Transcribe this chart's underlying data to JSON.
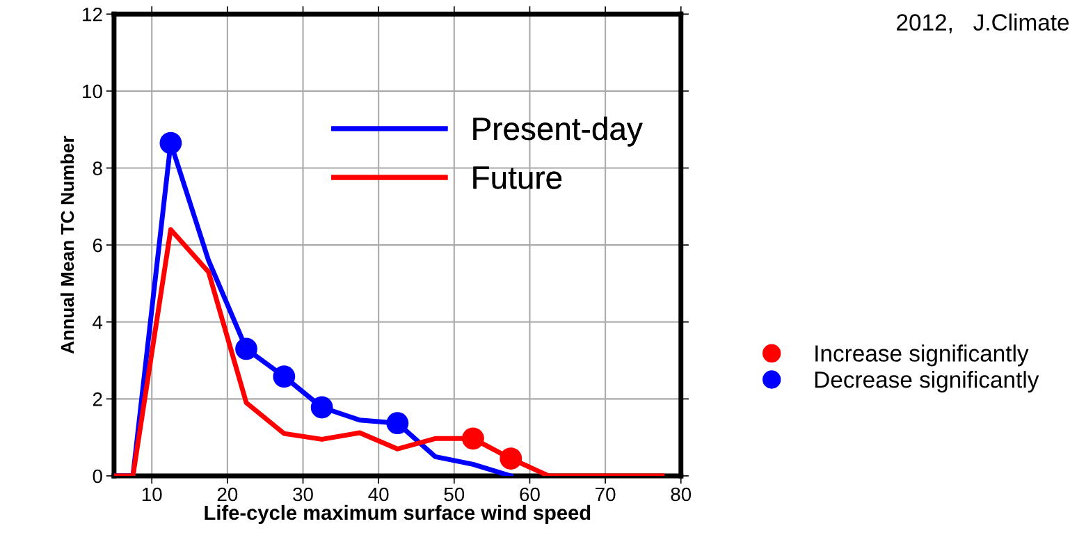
{
  "chart_data": {
    "type": "line",
    "xlabel": "Life-cycle maximum surface wind speed",
    "ylabel": "Annual Mean TC Number",
    "annotations": [
      "2012,   J.Climate"
    ],
    "series": [
      {
        "name": "Present-day",
        "color": "#0000ff",
        "x": [
          5,
          7.5,
          12.5,
          17.5,
          22.5,
          27.5,
          32.5,
          37.5,
          42.5,
          47.5,
          52.5,
          57.5
        ],
        "values": [
          0,
          0,
          8.65,
          5.6,
          3.3,
          2.58,
          1.78,
          1.45,
          1.37,
          0.5,
          0.3,
          0
        ]
      },
      {
        "name": "Future",
        "color": "#ff0000",
        "x": [
          5,
          7.5,
          12.5,
          17.5,
          22.5,
          27.5,
          32.5,
          37.5,
          42.5,
          47.5,
          52.5,
          57.5,
          62.5,
          67.5,
          72.5,
          77.5
        ],
        "values": [
          0,
          0,
          6.4,
          5.3,
          1.9,
          1.1,
          0.95,
          1.12,
          0.7,
          0.97,
          0.97,
          0.45,
          0,
          0,
          0,
          0
        ]
      },
      {
        "name": "Increase significantly",
        "type": "scatter",
        "marker": "circle",
        "color": "#ff0000",
        "x": [
          52.5,
          57.5
        ],
        "values": [
          0.97,
          0.45
        ]
      },
      {
        "name": "Decrease significantly",
        "type": "scatter",
        "marker": "circle",
        "color": "#0000ff",
        "x": [
          12.5,
          22.5,
          27.5,
          32.5,
          42.5
        ],
        "values": [
          8.65,
          3.3,
          2.58,
          1.78,
          1.37
        ]
      }
    ],
    "xlim": [
      5,
      80
    ],
    "xticks": [
      10,
      20,
      30,
      40,
      50,
      60,
      70,
      80
    ],
    "ylim": [
      0,
      12
    ],
    "yticks": [
      0,
      2,
      4,
      6,
      8,
      10,
      12
    ],
    "grid": true,
    "legend": "right",
    "line_style": "solid"
  }
}
